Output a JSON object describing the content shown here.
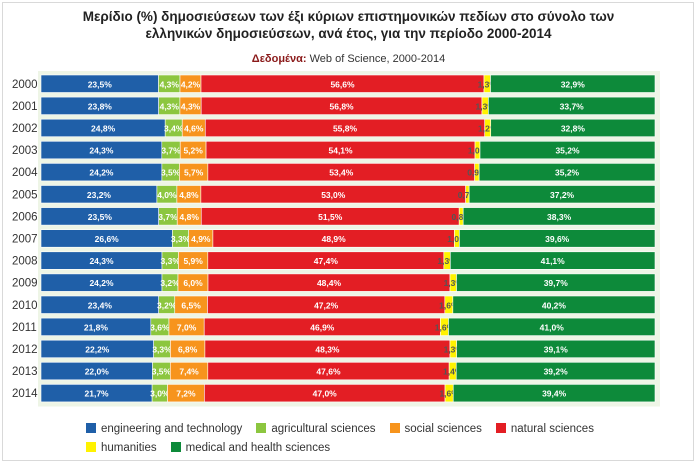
{
  "chart_data": {
    "type": "bar",
    "orientation": "horizontal",
    "stacked": true,
    "title_line1": "Μερίδιο (%) δημοσιεύσεων των έξι κύριων επιστημονικών πεδίων στο σύνολο των",
    "title_line2": "ελληνικών δημοσιεύσεων, ανά έτος, για την περίοδο 2000-2014",
    "source_label": "Δεδομένα:",
    "source_text": "Web of Science, 2000-2014",
    "categories": [
      "2000",
      "2001",
      "2002",
      "2003",
      "2004",
      "2005",
      "2006",
      "2007",
      "2008",
      "2009",
      "2010",
      "2011",
      "2012",
      "2013",
      "2014"
    ],
    "series": [
      {
        "name": "engineering and technology",
        "color": "#1f5fa8",
        "values": [
          23.5,
          23.8,
          24.8,
          24.3,
          24.2,
          23.2,
          23.5,
          26.6,
          24.3,
          24.2,
          23.4,
          21.8,
          22.2,
          22.0,
          21.7
        ],
        "labels": [
          "23,5%",
          "23,8%",
          "24,8%",
          "24,3%",
          "24,2%",
          "23,2%",
          "23,5%",
          "26,6%",
          "24,3%",
          "24,2%",
          "23,4%",
          "21,8%",
          "22,2%",
          "22,0%",
          "21,7%"
        ]
      },
      {
        "name": "agricultural sciences",
        "color": "#8cc63f",
        "values": [
          4.3,
          4.3,
          3.4,
          3.7,
          3.5,
          4.0,
          3.7,
          3.3,
          3.3,
          3.2,
          3.2,
          3.6,
          3.3,
          3.5,
          3.0
        ],
        "labels": [
          "4,3%",
          "4,3%",
          "3,4%",
          "3,7%",
          "3,5%",
          "4,0%",
          "3,7%",
          "3,3%",
          "3,3%",
          "3,2%",
          "3,2%",
          "3,6%",
          "3,3%",
          "3,5%",
          "3,0%"
        ]
      },
      {
        "name": "social sciences",
        "color": "#f7941d",
        "values": [
          4.2,
          4.3,
          4.6,
          5.2,
          5.7,
          4.8,
          4.8,
          4.9,
          5.9,
          6.0,
          6.5,
          7.0,
          6.8,
          7.4,
          7.2
        ],
        "labels": [
          "4,2%",
          "4,3%",
          "4,6%",
          "5,2%",
          "5,7%",
          "4,8%",
          "4,8%",
          "4,9%",
          "5,9%",
          "6,0%",
          "6,5%",
          "7,0%",
          "6,8%",
          "7,4%",
          "7,2%"
        ]
      },
      {
        "name": "natural sciences",
        "color": "#e31e24",
        "values": [
          56.6,
          56.8,
          55.8,
          54.1,
          53.4,
          53.0,
          51.5,
          48.9,
          47.4,
          48.4,
          47.2,
          46.9,
          48.3,
          47.6,
          47.0
        ],
        "labels": [
          "56,6%",
          "56,8%",
          "55,8%",
          "54,1%",
          "53,4%",
          "53,0%",
          "51,5%",
          "48,9%",
          "47,4%",
          "48,4%",
          "47,2%",
          "46,9%",
          "48,3%",
          "47,6%",
          "47,0%"
        ]
      },
      {
        "name": "humanities",
        "color": "#fff200",
        "values": [
          1.3,
          1.3,
          1.2,
          1.0,
          0.9,
          0.7,
          0.8,
          1.0,
          1.3,
          1.3,
          1.6,
          1.6,
          1.3,
          1.4,
          1.6
        ],
        "labels": [
          "1,3%",
          "1,3%",
          "1,2%",
          "1,0%",
          "0,9%",
          "0,7%",
          "0,8%",
          "1,0%",
          "1,3%",
          "1,3%",
          "1,6%",
          "1,6%",
          "1,3%",
          "1,4%",
          "1,6%"
        ]
      },
      {
        "name": "medical and health sciences",
        "color": "#0d8a3a",
        "values": [
          32.9,
          33.7,
          32.8,
          35.2,
          35.2,
          37.2,
          38.3,
          39.6,
          41.1,
          39.7,
          40.2,
          41.0,
          39.1,
          39.2,
          39.4
        ],
        "labels": [
          "32,9%",
          "33,7%",
          "32,8%",
          "35,2%",
          "35,2%",
          "37,2%",
          "38,3%",
          "39,6%",
          "41,1%",
          "39,7%",
          "40,2%",
          "41,0%",
          "39,1%",
          "39,2%",
          "39,4%"
        ]
      }
    ],
    "legend_position": "bottom-left",
    "grid": false,
    "background_band_color": "#eef5e6"
  }
}
